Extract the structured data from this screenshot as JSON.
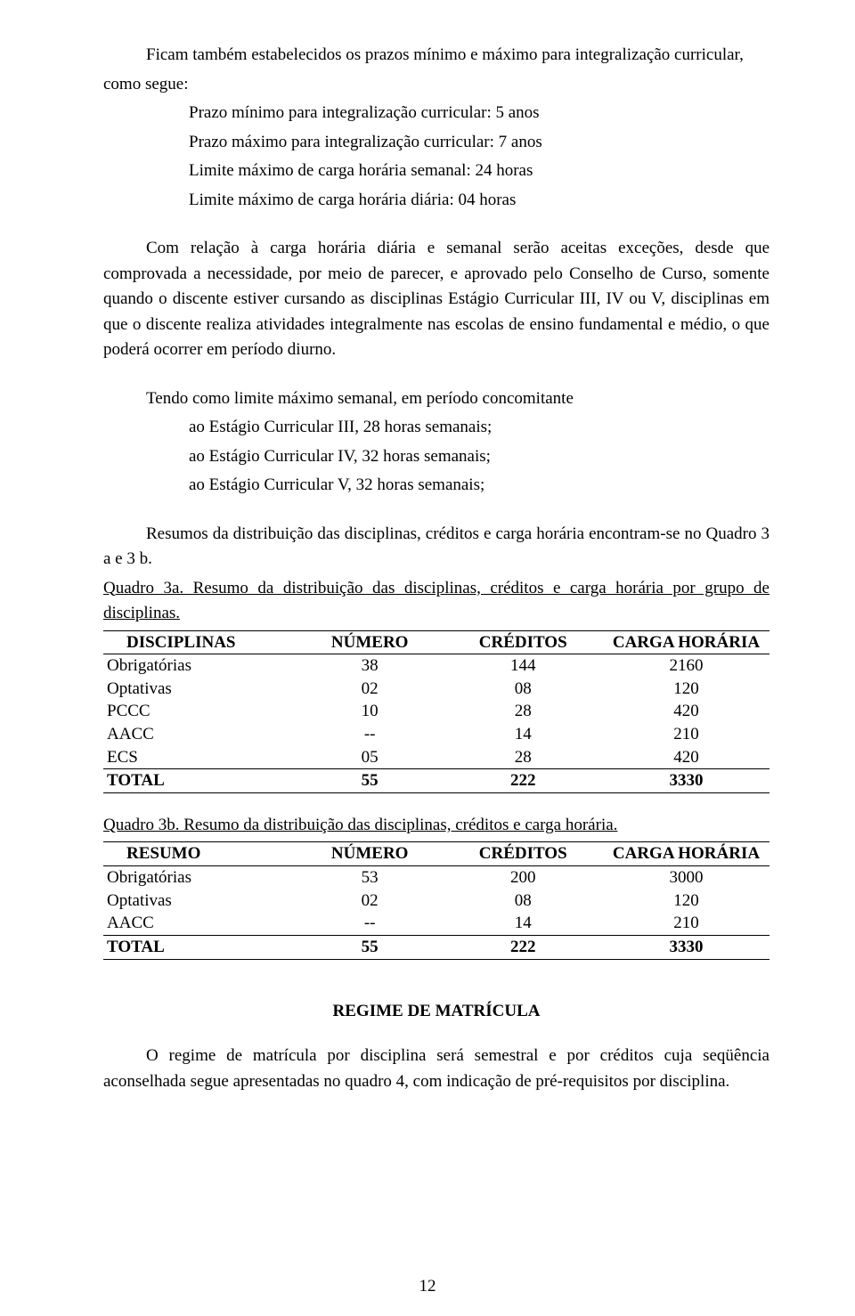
{
  "para1_line1": "Ficam também estabelecidos os prazos mínimo e máximo para integralização curricular,",
  "para1_line2": "como segue:",
  "prazos": {
    "p1": "Prazo mínimo para integralização curricular: 5 anos",
    "p2": "Prazo máximo para integralização curricular: 7 anos",
    "p3": "Limite máximo de carga horária semanal: 24 horas",
    "p4": "Limite máximo de carga horária diária: 04 horas"
  },
  "para2": "Com relação à carga horária diária e semanal serão aceitas exceções, desde que comprovada a necessidade, por meio de parecer, e aprovado pelo Conselho de Curso, somente quando o discente estiver cursando as disciplinas Estágio Curricular III, IV ou V, disciplinas em que o discente realiza atividades integralmente nas escolas de ensino fundamental e médio, o que poderá ocorrer em período diurno.",
  "para3": "Tendo como limite máximo semanal, em período concomitante",
  "estagios": {
    "e1": "ao Estágio Curricular III,  28 horas semanais;",
    "e2": "ao Estágio Curricular IV,  32 horas semanais;",
    "e3": "ao Estágio Curricular V,  32 horas semanais;"
  },
  "para4": "Resumos da distribuição das disciplinas, créditos e carga horária encontram-se no Quadro 3 a e 3 b.",
  "quadro3a_caption": "Quadro 3a. Resumo da distribuição das disciplinas, créditos e carga horária por grupo de disciplinas.",
  "headers": {
    "c1": "DISCIPLINAS",
    "c2": "NÚMERO",
    "c3": "CRÉDITOS",
    "c4": "CARGA HORÁRIA"
  },
  "table3a": {
    "rows": [
      {
        "c1": "Obrigatórias",
        "c2": "38",
        "c3": "144",
        "c4": "2160"
      },
      {
        "c1": "Optativas",
        "c2": "02",
        "c3": "08",
        "c4": "120"
      },
      {
        "c1": "PCCC",
        "c2": "10",
        "c3": "28",
        "c4": "420"
      },
      {
        "c1": "AACC",
        "c2": "--",
        "c3": "14",
        "c4": "210"
      },
      {
        "c1": "ECS",
        "c2": "05",
        "c3": "28",
        "c4": "420"
      }
    ],
    "total": {
      "c1": "TOTAL",
      "c2": "55",
      "c3": "222",
      "c4": "3330"
    }
  },
  "quadro3b_caption": "Quadro 3b. Resumo da distribuição das disciplinas, créditos e carga horária.",
  "headers_b": {
    "c1": "RESUMO",
    "c2": "NÚMERO",
    "c3": "CRÉDITOS",
    "c4": "CARGA HORÁRIA"
  },
  "table3b": {
    "rows": [
      {
        "c1": "Obrigatórias",
        "c2": "53",
        "c3": "200",
        "c4": "3000"
      },
      {
        "c1": "Optativas",
        "c2": "02",
        "c3": "08",
        "c4": "120"
      },
      {
        "c1": "AACC",
        "c2": "--",
        "c3": "14",
        "c4": "210"
      }
    ],
    "total": {
      "c1": "TOTAL",
      "c2": "55",
      "c3": "222",
      "c4": "3330"
    }
  },
  "section_title": "REGIME DE MATRÍCULA",
  "para5": "O regime de matrícula por disciplina será semestral e por créditos cuja seqüência aconselhada segue apresentadas no quadro 4, com indicação de pré-requisitos por disciplina.",
  "page_number": "12",
  "col_widths": {
    "c1": "29%",
    "c2": "22%",
    "c3": "24%",
    "c4": "25%"
  }
}
